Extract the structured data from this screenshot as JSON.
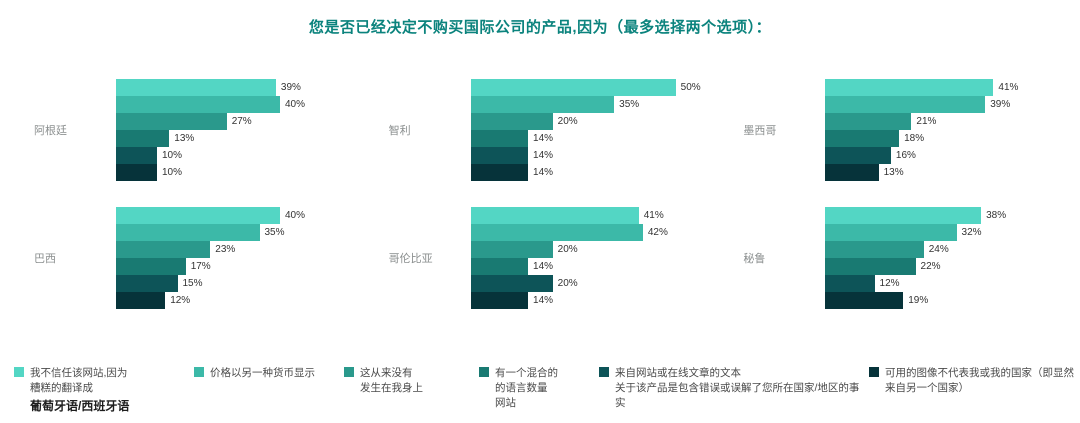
{
  "title": "您是否已经决定不购买国际公司的产品,因为（最多选择两个选项）：",
  "colors": [
    "#53d6c4",
    "#3cb9a8",
    "#2a998c",
    "#197a72",
    "#0d5458",
    "#06333a"
  ],
  "chart_data": {
    "type": "bar",
    "orientation": "horizontal",
    "title": "您是否已经决定不购买国际公司的产品,因为（最多选择两个选项）：",
    "xlim": [
      0,
      50
    ],
    "grid": false,
    "legend_position": "bottom",
    "categories": [
      "我不信任该网站,因为糟糕的翻译成葡萄牙语/西班牙语",
      "价格以另一种货币显示",
      "这从来没有发生在我身上",
      "有一个混合的的语言数量网站",
      "来自网站或在线文章的文本关于该产品是包含错误或误解了您所在国家/地区的事实",
      "可用的图像不代表我或我的国家（即显然来自另一个国家）"
    ],
    "series": [
      {
        "name": "阿根廷",
        "values": [
          39,
          40,
          27,
          13,
          10,
          10
        ]
      },
      {
        "name": "智利",
        "values": [
          50,
          35,
          20,
          14,
          14,
          14
        ]
      },
      {
        "name": "墨西哥",
        "values": [
          41,
          39,
          21,
          18,
          16,
          13
        ]
      },
      {
        "name": "巴西",
        "values": [
          40,
          35,
          23,
          17,
          15,
          12
        ]
      },
      {
        "name": "哥伦比亚",
        "values": [
          41,
          42,
          20,
          14,
          20,
          14
        ]
      },
      {
        "name": "秘鲁",
        "values": [
          38,
          32,
          24,
          22,
          12,
          19
        ]
      }
    ]
  },
  "legend": [
    {
      "color": "#53d6c4",
      "lines": [
        "我不信任该网站,因为",
        "糟糕的翻译成"
      ],
      "emphasis": "葡萄牙语/西班牙语"
    },
    {
      "color": "#3cb9a8",
      "lines": [
        "价格以另一种货币显示"
      ]
    },
    {
      "color": "#2a998c",
      "lines": [
        "这从来没有",
        "发生在我身上"
      ]
    },
    {
      "color": "#197a72",
      "lines": [
        "有一个混合的",
        "的语言数量",
        "网站"
      ]
    },
    {
      "color": "#0d5458",
      "lines": [
        "来自网站或在线文章的文本",
        "关于该产品是包含错误或误解了您所在国家/地区的事实"
      ]
    },
    {
      "color": "#06333a",
      "lines": [
        "可用的图像不代表我或我的国家（即显然",
        "来自另一个国家）"
      ]
    }
  ]
}
